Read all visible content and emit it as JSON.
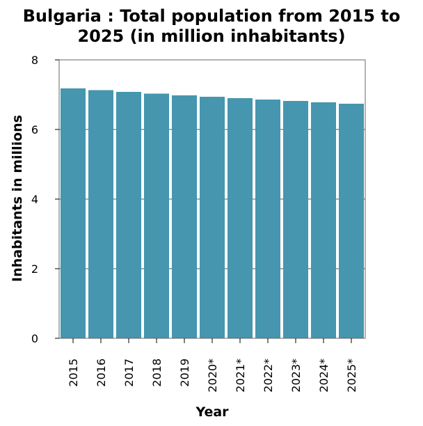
{
  "chart_data": {
    "type": "bar",
    "title_lines": [
      "Bulgaria : Total population from 2015 to",
      "2025 (in million inhabitants)"
    ],
    "xlabel": "Year",
    "ylabel": "Inhabitants in millions",
    "categories": [
      "2015",
      "2016",
      "2017",
      "2018",
      "2019",
      "2020*",
      "2021*",
      "2022*",
      "2023*",
      "2024*",
      "2025*"
    ],
    "values": [
      7.18,
      7.13,
      7.08,
      7.03,
      6.98,
      6.94,
      6.9,
      6.86,
      6.82,
      6.78,
      6.74
    ],
    "ylim": [
      0,
      8
    ],
    "yticks": [
      0,
      2,
      4,
      6,
      8
    ],
    "grid": true,
    "bar_color": "#4596ae",
    "grid_color": "#555555"
  }
}
